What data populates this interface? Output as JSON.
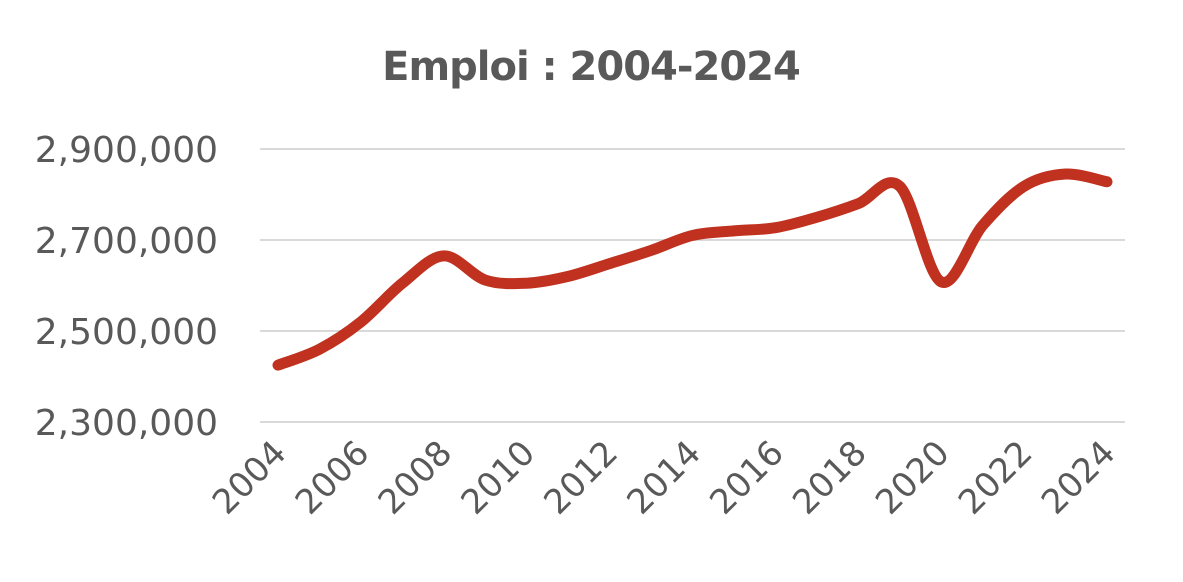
{
  "chart_data": {
    "type": "line",
    "title": "Emploi : 2004-2024",
    "xlabel": "",
    "ylabel": "",
    "x": [
      2004,
      2005,
      2006,
      2007,
      2008,
      2009,
      2010,
      2011,
      2012,
      2013,
      2014,
      2015,
      2016,
      2017,
      2018,
      2019,
      2020,
      2021,
      2022,
      2023,
      2024
    ],
    "x_tick_labels": [
      "2004",
      "2006",
      "2008",
      "2010",
      "2012",
      "2014",
      "2016",
      "2018",
      "2020",
      "2022",
      "2024"
    ],
    "x_tick_values": [
      2004,
      2006,
      2008,
      2010,
      2012,
      2014,
      2016,
      2018,
      2020,
      2022,
      2024
    ],
    "y_tick_labels": [
      "2,300,000",
      "2,500,000",
      "2,700,000",
      "2,900,000"
    ],
    "y_tick_values": [
      2300000,
      2500000,
      2700000,
      2900000
    ],
    "ylim": [
      2300000,
      2900000
    ],
    "grid": true,
    "legend": "none",
    "series": [
      {
        "color": "#c0311f",
        "values": [
          2425000,
          2460000,
          2520000,
          2605000,
          2665000,
          2612000,
          2605000,
          2620000,
          2648000,
          2677000,
          2710000,
          2720000,
          2727000,
          2750000,
          2780000,
          2818000,
          2608000,
          2732000,
          2818000,
          2845000,
          2828000
        ]
      }
    ]
  }
}
